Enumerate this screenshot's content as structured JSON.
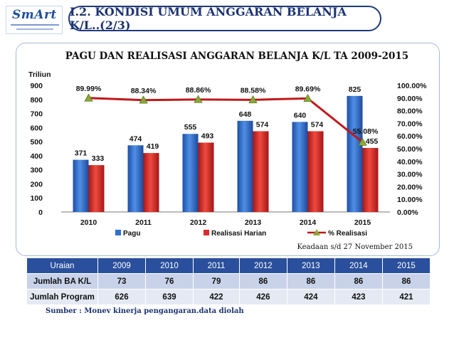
{
  "logo": {
    "text": "SmArt"
  },
  "header": {
    "title": "I.2.  KONDISI UMUM ANGGARAN BELANJA K/L..(2/3)"
  },
  "colors": {
    "pagu": "#2e6fd0",
    "realisasi": "#d92b2b",
    "line": "#c0181b",
    "marker": "#8aa838",
    "header": "#2a4f9c"
  },
  "chart_data": {
    "type": "bar",
    "title": "PAGU DAN REALISASI ANGGARAN BELANJA K/L  TA 2009-2015",
    "ylabel": "Triliun",
    "ylim": [
      0,
      900
    ],
    "yticks": [
      "0",
      "100",
      "200",
      "300",
      "400",
      "500",
      "600",
      "700",
      "800",
      "900"
    ],
    "y2lim": [
      0,
      100
    ],
    "y2ticks": [
      "0.00%",
      "10.00%",
      "20.00%",
      "30.00%",
      "40.00%",
      "50.00%",
      "60.00%",
      "70.00%",
      "80.00%",
      "90.00%",
      "100.00%"
    ],
    "categories": [
      "2010",
      "2011",
      "2012",
      "2013",
      "2014",
      "2015"
    ],
    "series": [
      {
        "name": "Pagu",
        "type": "bar",
        "values": [
          371,
          474,
          555,
          648,
          640,
          825
        ]
      },
      {
        "name": "Realisasi Harian",
        "type": "bar",
        "values": [
          333,
          419,
          493,
          574,
          574,
          455
        ]
      },
      {
        "name": "% Realisasi",
        "type": "line",
        "axis": "right",
        "values": [
          89.99,
          88.34,
          88.86,
          88.58,
          89.69,
          55.08
        ],
        "labels": [
          "89.99%",
          "88.34%",
          "88.86%",
          "88.58%",
          "89.69%",
          "55.08%"
        ]
      }
    ],
    "legend": "bottom",
    "grid": false,
    "note": "Keadaan s/d 27 November 2015"
  },
  "table": {
    "headers": [
      "Uraian",
      "2009",
      "2010",
      "2011",
      "2012",
      "2013",
      "2014",
      "2015"
    ],
    "rows": [
      [
        "Jumlah BA K/L",
        "73",
        "76",
        "79",
        "86",
        "86",
        "86",
        "86"
      ],
      [
        "Jumlah Program",
        "626",
        "639",
        "422",
        "426",
        "424",
        "423",
        "421"
      ]
    ]
  },
  "source": "Sumber :   Monev kinerja pengangaran.data diolah"
}
